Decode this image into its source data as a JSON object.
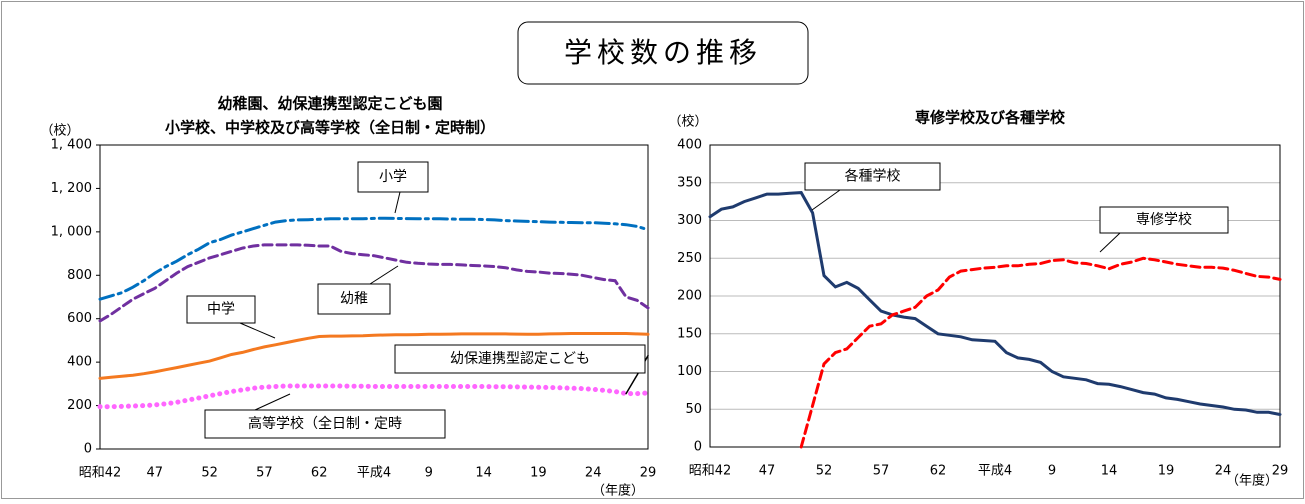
{
  "title": "学校数の推移",
  "chart_data": [
    {
      "type": "line",
      "title": [
        "幼稚園、幼保連携型認定こども園",
        "小学校、中学校及び高等学校（全日制・定時制）"
      ],
      "y_label": "（校）",
      "x_label": "（年度）",
      "categories": [
        "昭和42",
        null,
        null,
        null,
        null,
        "47",
        null,
        null,
        null,
        null,
        "52",
        null,
        null,
        null,
        null,
        "57",
        null,
        null,
        null,
        null,
        "62",
        null,
        null,
        null,
        null,
        "平成4",
        null,
        null,
        null,
        null,
        "9",
        null,
        null,
        null,
        null,
        "14",
        null,
        null,
        null,
        null,
        "19",
        null,
        null,
        null,
        null,
        "24",
        null,
        null,
        null,
        null,
        "29"
      ],
      "ylim": [
        0,
        1400
      ],
      "yticks": [
        0,
        200,
        400,
        600,
        800,
        {
          "value": 1000,
          "label": "1, 000"
        },
        {
          "value": 1200,
          "label": "1, 200"
        },
        {
          "value": 1400,
          "label": "1, 400"
        }
      ],
      "grid": false,
      "series": [
        {
          "name": "小学",
          "color": "#0070c0",
          "style": "dashdot",
          "values": [
            690,
            705,
            720,
            745,
            775,
            810,
            840,
            865,
            895,
            920,
            950,
            965,
            985,
            1000,
            1015,
            1030,
            1045,
            1052,
            1055,
            1056,
            1058,
            1060,
            1060,
            1060,
            1060,
            1062,
            1063,
            1062,
            1061,
            1060,
            1060,
            1060,
            1059,
            1058,
            1058,
            1057,
            1055,
            1052,
            1050,
            1048,
            1047,
            1045,
            1044,
            1043,
            1042,
            1042,
            1040,
            1037,
            1033,
            1025,
            1010
          ]
        },
        {
          "name": "幼稚",
          "color": "#7030a0",
          "style": "dashed",
          "values": [
            590,
            620,
            655,
            690,
            715,
            740,
            775,
            810,
            840,
            860,
            880,
            895,
            910,
            925,
            935,
            940,
            940,
            940,
            940,
            938,
            935,
            935,
            910,
            900,
            895,
            890,
            880,
            870,
            860,
            855,
            852,
            850,
            850,
            848,
            845,
            843,
            840,
            835,
            825,
            818,
            815,
            810,
            808,
            805,
            800,
            790,
            780,
            775,
            700,
            685,
            650
          ]
        },
        {
          "name": "中学",
          "color": "#f47920",
          "style": "solid",
          "values": [
            325,
            330,
            335,
            340,
            347,
            355,
            365,
            375,
            385,
            395,
            405,
            420,
            435,
            445,
            458,
            470,
            480,
            490,
            500,
            510,
            518,
            520,
            520,
            521,
            522,
            524,
            525,
            526,
            526,
            527,
            528,
            528,
            529,
            530,
            530,
            530,
            530,
            530,
            529,
            528,
            528,
            530,
            531,
            532,
            532,
            532,
            532,
            532,
            532,
            530,
            528
          ]
        },
        {
          "name": "高等学校（全日制・定時",
          "color": "#ff66ff",
          "style": "dotted",
          "values": [
            195,
            195,
            196,
            198,
            200,
            203,
            208,
            215,
            225,
            235,
            245,
            255,
            265,
            272,
            280,
            285,
            288,
            290,
            290,
            290,
            290,
            290,
            290,
            289,
            289,
            288,
            288,
            288,
            288,
            288,
            288,
            288,
            288,
            288,
            288,
            288,
            287,
            287,
            286,
            285,
            284,
            283,
            282,
            280,
            278,
            275,
            270,
            265,
            255,
            255,
            258
          ]
        },
        {
          "name": "幼保連携型認定こども",
          "color": "#000000",
          "style": "solid",
          "values": [
            null,
            null,
            null,
            null,
            null,
            null,
            null,
            null,
            null,
            null,
            null,
            null,
            null,
            null,
            null,
            null,
            null,
            null,
            null,
            null,
            null,
            null,
            null,
            null,
            null,
            null,
            null,
            null,
            null,
            null,
            null,
            null,
            null,
            null,
            null,
            null,
            null,
            null,
            null,
            null,
            null,
            null,
            null,
            null,
            null,
            null,
            null,
            null,
            255,
            340,
            430
          ]
        }
      ]
    },
    {
      "type": "line",
      "title": [
        "専修学校及び各種学校"
      ],
      "y_label": "（校）",
      "x_label": "（年度）",
      "categories": [
        "昭和42",
        null,
        null,
        null,
        null,
        "47",
        null,
        null,
        null,
        null,
        "52",
        null,
        null,
        null,
        null,
        "57",
        null,
        null,
        null,
        null,
        "62",
        null,
        null,
        null,
        null,
        "平成4",
        null,
        null,
        null,
        null,
        "9",
        null,
        null,
        null,
        null,
        "14",
        null,
        null,
        null,
        null,
        "19",
        null,
        null,
        null,
        null,
        "24",
        null,
        null,
        null,
        null,
        "29"
      ],
      "ylim": [
        0,
        400
      ],
      "yticks": [
        0,
        50,
        100,
        150,
        200,
        250,
        300,
        350,
        400
      ],
      "grid": true,
      "series": [
        {
          "name": "各種学校",
          "color": "#1f3b6e",
          "style": "solid",
          "values": [
            305,
            315,
            318,
            325,
            330,
            335,
            335,
            336,
            337,
            310,
            227,
            212,
            218,
            210,
            195,
            180,
            175,
            172,
            170,
            160,
            150,
            148,
            146,
            142,
            141,
            140,
            125,
            118,
            116,
            112,
            100,
            93,
            91,
            89,
            84,
            83,
            80,
            76,
            72,
            70,
            65,
            63,
            60,
            57,
            55,
            53,
            50,
            49,
            46,
            46,
            43
          ]
        },
        {
          "name": "専修学校",
          "color": "#ff0000",
          "style": "dashed",
          "values": [
            null,
            null,
            null,
            null,
            null,
            null,
            null,
            null,
            0,
            55,
            110,
            125,
            130,
            145,
            160,
            163,
            175,
            180,
            185,
            200,
            208,
            225,
            233,
            235,
            237,
            238,
            240,
            240,
            242,
            243,
            247,
            248,
            244,
            243,
            240,
            236,
            242,
            245,
            250,
            248,
            245,
            242,
            240,
            238,
            238,
            237,
            234,
            230,
            226,
            225,
            222
          ]
        }
      ]
    }
  ]
}
